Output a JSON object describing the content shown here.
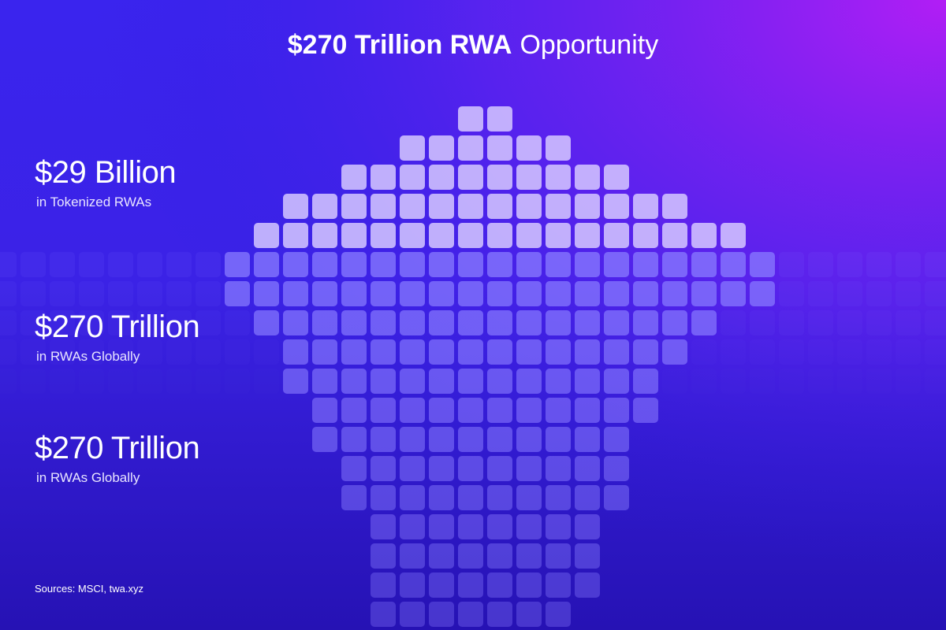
{
  "title": {
    "bold": "$270 Trillion RWA",
    "regular": "Opportunity"
  },
  "stats": [
    {
      "value": "$29 Billion",
      "label": "in Tokenized RWAs"
    },
    {
      "value": "$270 Trillion",
      "label": "in RWAs Globally"
    },
    {
      "value": "$270 Trillion",
      "label": "in RWAs Globally"
    }
  ],
  "source": "Sources: MSCI, twa.xyz"
}
